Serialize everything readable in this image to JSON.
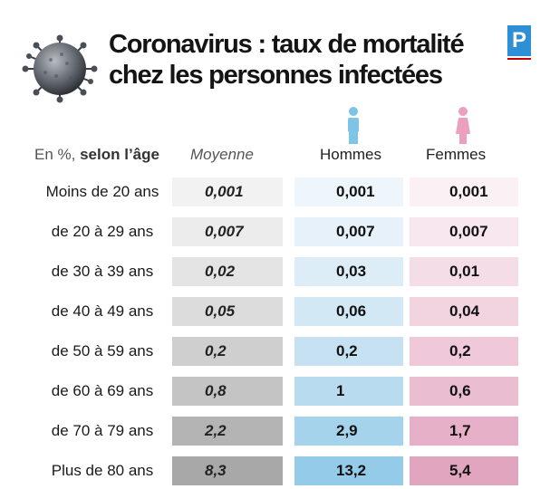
{
  "header": {
    "title_line1": "Coronavirus : taux de mortalité",
    "title_line2": "chez les personnes infectées",
    "logo_letter": "P",
    "logo_color": "#2d8fd5"
  },
  "chart_data": {
    "type": "table",
    "unit_label_prefix": "En %,",
    "unit_label_bold": "selon l’âge",
    "columns": [
      "Moyenne",
      "Hommes",
      "Femmes"
    ],
    "categories": [
      "Moins de 20 ans",
      "de 20 à 29 ans",
      "de 30 à 39 ans",
      "de 40 à 49 ans",
      "de 50 à 59 ans",
      "de 60 à 69 ans",
      "de 70 à 79 ans",
      "Plus de 80 ans"
    ],
    "series": [
      {
        "name": "Moyenne",
        "values": [
          "0,001",
          "0,007",
          "0,02",
          "0,05",
          "0,2",
          "0,8",
          "2,2",
          "8,3"
        ]
      },
      {
        "name": "Hommes",
        "values": [
          "0,001",
          "0,007",
          "0,03",
          "0,06",
          "0,2",
          "1",
          "2,9",
          "13,2"
        ]
      },
      {
        "name": "Femmes",
        "values": [
          "0,001",
          "0,007",
          "0,01",
          "0,04",
          "0,2",
          "0,6",
          "1,7",
          "5,4"
        ]
      }
    ],
    "colors": {
      "moyenne": [
        "#f2f2f2",
        "#ececec",
        "#e4e4e4",
        "#dcdcdc",
        "#cfcfcf",
        "#c4c4c4",
        "#b4b4b4",
        "#a8a8a8"
      ],
      "hommes": [
        "#eef6fb",
        "#e6f1f9",
        "#ddedf7",
        "#d2e8f5",
        "#c6e2f2",
        "#b8dbef",
        "#a6d3ec",
        "#94cbe9"
      ],
      "femmes": [
        "#fbf0f4",
        "#f8e7ee",
        "#f5dde7",
        "#f2d3e0",
        "#efc9da",
        "#ebbdd1",
        "#e6b0c8",
        "#e2a5c0"
      ],
      "hommes_icon": "#7ec4e6",
      "femmes_icon": "#ec9fbf"
    }
  }
}
